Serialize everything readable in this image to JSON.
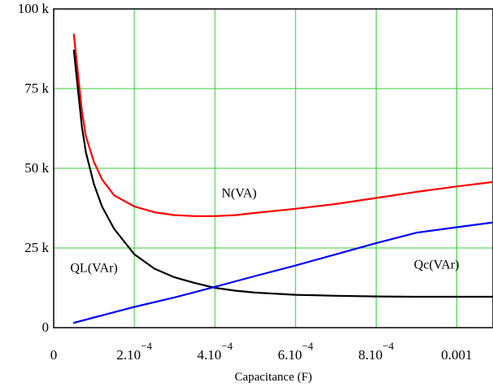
{
  "chart_data": {
    "type": "line",
    "xlabel": "Capacitance (F)",
    "ylabel": "",
    "xlim": [
      0,
      0.00109
    ],
    "ylim": [
      0,
      100000
    ],
    "grid": true,
    "x_ticks": [
      {
        "value": 0,
        "label": "0",
        "exp": ""
      },
      {
        "value": 0.0002,
        "label": "2.10",
        "exp": "−4"
      },
      {
        "value": 0.0004,
        "label": "4.10",
        "exp": "−4"
      },
      {
        "value": 0.0006,
        "label": "6.10",
        "exp": "−4"
      },
      {
        "value": 0.0008,
        "label": "8.10",
        "exp": "−4"
      },
      {
        "value": 0.001,
        "label": "0.001",
        "exp": ""
      }
    ],
    "y_ticks": [
      {
        "value": 0,
        "label": "0"
      },
      {
        "value": 25000,
        "label": "25 k"
      },
      {
        "value": 50000,
        "label": "50 k"
      },
      {
        "value": 75000,
        "label": "75 k"
      },
      {
        "value": 100000,
        "label": "100 k"
      }
    ],
    "series": [
      {
        "name": "N(VA)",
        "color": "#ff0000",
        "x": [
          5e-05,
          6e-05,
          7e-05,
          8e-05,
          0.0001,
          0.00012,
          0.00015,
          0.0002,
          0.00025,
          0.0003,
          0.00035,
          0.0004,
          0.00045,
          0.0005,
          0.0006,
          0.0007,
          0.0008,
          0.0009,
          0.001,
          0.00109
        ],
        "y": [
          92000,
          80000,
          68000,
          60000,
          52000,
          46500,
          41500,
          38000,
          36200,
          35300,
          35000,
          35000,
          35300,
          36000,
          37300,
          38800,
          40700,
          42600,
          44300,
          45700
        ]
      },
      {
        "name": "QL(VAr)",
        "color": "#000000",
        "x": [
          5e-05,
          6e-05,
          7e-05,
          8e-05,
          0.0001,
          0.00012,
          0.00015,
          0.0002,
          0.00025,
          0.0003,
          0.00035,
          0.0004,
          0.00045,
          0.0005,
          0.0006,
          0.0007,
          0.0008,
          0.0009,
          0.001,
          0.00109
        ],
        "y": [
          87000,
          75000,
          63000,
          55000,
          45000,
          38000,
          31000,
          23000,
          18500,
          15800,
          14000,
          12500,
          11600,
          11000,
          10300,
          10000,
          9800,
          9700,
          9700,
          9700
        ]
      },
      {
        "name": "Qc(VAr)",
        "color": "#0000ff",
        "x": [
          5e-05,
          0.0001,
          0.0002,
          0.0003,
          0.0004,
          0.0005,
          0.0006,
          0.0007,
          0.0008,
          0.0009,
          0.001,
          0.00109
        ],
        "y": [
          1500,
          3200,
          6500,
          9500,
          12800,
          16200,
          19500,
          23000,
          26500,
          29800,
          31500,
          33000
        ]
      }
    ],
    "annotations": [
      {
        "text": "N(VA)",
        "series": "N(VA)",
        "x": 0.00046,
        "y": 41000
      },
      {
        "text": "QL(VAr)",
        "series": "QL(VAr)",
        "x": 0.0001,
        "y": 17500
      },
      {
        "text": "Qc(VAr)",
        "series": "Qc(VAr)",
        "x": 0.00095,
        "y": 18500
      }
    ]
  }
}
